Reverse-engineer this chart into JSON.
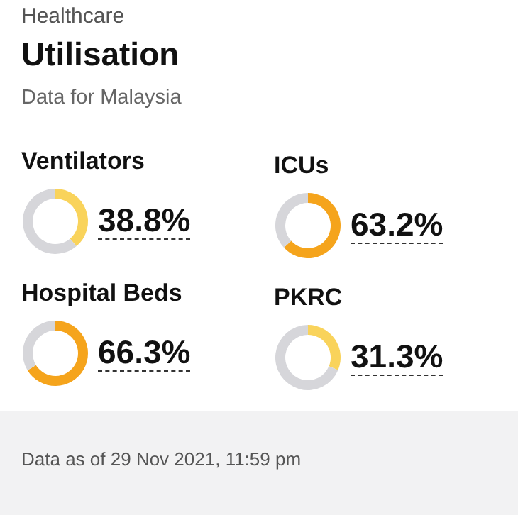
{
  "chart_data": [
    {
      "type": "other",
      "title": "Utilisation",
      "subtitle": "Data for Malaysia",
      "annotations": [
        "Healthcare",
        "Data as of 29 Nov 2021, 11:59 pm"
      ]
    },
    {
      "type": "donut",
      "title": "Ventilators",
      "categories": [
        null,
        null
      ],
      "values": [
        38.8,
        61.2
      ],
      "colors": [
        "#f9d35b",
        "#d6d6da"
      ],
      "value_labels": [
        "38.8%",
        null
      ]
    },
    {
      "type": "donut",
      "title": "ICUs",
      "categories": [
        null,
        null
      ],
      "values": [
        63.2,
        36.8
      ],
      "colors": [
        "#f5a41c",
        "#d6d6da"
      ],
      "value_labels": [
        "63.2%",
        null
      ]
    },
    {
      "type": "donut",
      "title": "Hospital Beds",
      "categories": [
        null,
        null
      ],
      "values": [
        66.3,
        33.7
      ],
      "colors": [
        "#f5a41c",
        "#d6d6da"
      ],
      "value_labels": [
        "66.3%",
        null
      ]
    },
    {
      "type": "donut",
      "title": "PKRC",
      "categories": [
        null,
        null
      ],
      "values": [
        31.3,
        68.7
      ],
      "colors": [
        "#f9d35b",
        "#d6d6da"
      ],
      "value_labels": [
        "31.3%",
        null
      ]
    }
  ]
}
